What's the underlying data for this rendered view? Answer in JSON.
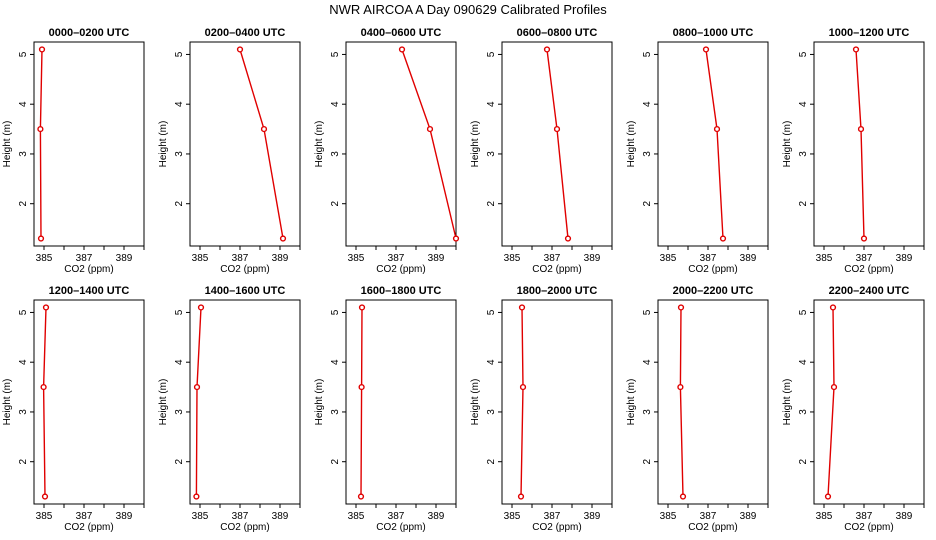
{
  "title": "NWR AIRCOA A  Day 090629  Calibrated Profiles",
  "chart_data": {
    "type": "line",
    "xlabel": "CO2 (ppm)",
    "ylabel": "Height (m)",
    "xlim": [
      384.5,
      390.0
    ],
    "ylim": [
      1.15,
      5.25
    ],
    "xticks": [
      385,
      387,
      389
    ],
    "xminor": [
      386,
      388,
      390
    ],
    "yticks": [
      2,
      3,
      4,
      5
    ],
    "heights": [
      5.1,
      3.5,
      1.3
    ],
    "line_color": "#e00000",
    "panels": [
      {
        "title": "0000–0200 UTC",
        "co2": [
          384.9,
          384.82,
          384.85
        ]
      },
      {
        "title": "0200–0400 UTC",
        "co2": [
          387.0,
          388.2,
          389.15
        ]
      },
      {
        "title": "0400–0600 UTC",
        "co2": [
          387.3,
          388.7,
          390.0
        ]
      },
      {
        "title": "0600–0800 UTC",
        "co2": [
          386.75,
          387.25,
          387.8
        ]
      },
      {
        "title": "0800–1000 UTC",
        "co2": [
          386.9,
          387.45,
          387.75
        ]
      },
      {
        "title": "1000–1200 UTC",
        "co2": [
          386.6,
          386.85,
          387.0
        ]
      },
      {
        "title": "1200–1400 UTC",
        "co2": [
          385.1,
          384.98,
          385.05
        ]
      },
      {
        "title": "1400–1600 UTC",
        "co2": [
          385.05,
          384.85,
          384.82
        ]
      },
      {
        "title": "1600–1800 UTC",
        "co2": [
          385.3,
          385.28,
          385.25
        ]
      },
      {
        "title": "1800–2000 UTC",
        "co2": [
          385.5,
          385.55,
          385.45
        ]
      },
      {
        "title": "2000–2200 UTC",
        "co2": [
          385.65,
          385.62,
          385.75
        ]
      },
      {
        "title": "2200–2400 UTC",
        "co2": [
          385.45,
          385.5,
          385.2
        ]
      }
    ]
  }
}
